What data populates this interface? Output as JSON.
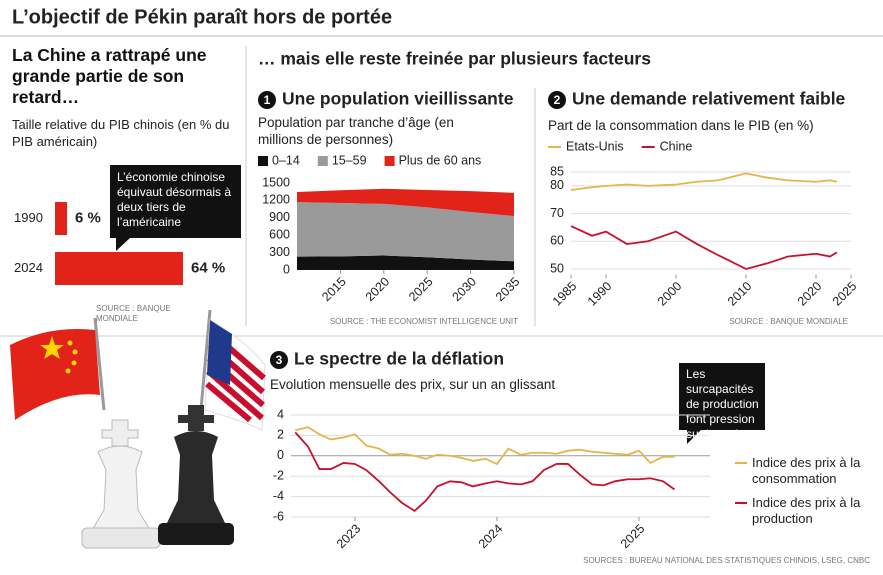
{
  "title": "L’objectif de Pékin paraît hors de portée",
  "section_heading": "… mais elle reste freinée par plusieurs facteurs",
  "chart_data": [
    {
      "type": "bar",
      "orientation": "horizontal",
      "title": "La Chine a rattrapé une grande partie de son retard…",
      "subtitle": "Taille relative du PIB chinois (en % du PIB américain)",
      "categories": [
        "1990",
        "2024"
      ],
      "values": [
        6,
        64
      ],
      "value_labels": [
        "6 %",
        "64 %"
      ],
      "color": "#e2231a",
      "annotation": "L’économie chinoise équivaut désormais à deux tiers de l’américaine",
      "source": "SOURCE : BANQUE MONDIALE"
    },
    {
      "type": "area",
      "stacked": true,
      "number": 1,
      "title": "Une population vieillissante",
      "subtitle": "Population par tranche d’âge (en millions de personnes)",
      "x": [
        2010,
        2015,
        2020,
        2025,
        2030,
        2035
      ],
      "xlim": [
        2010,
        2035
      ],
      "xticks": [
        2015,
        2020,
        2025,
        2030,
        2035
      ],
      "ylim": [
        0,
        1500
      ],
      "yticks": [
        0,
        300,
        600,
        900,
        1200,
        1500
      ],
      "grid": false,
      "legend": "top",
      "series": [
        {
          "name": "0–14",
          "color": "#111111",
          "values": [
            230,
            235,
            250,
            220,
            180,
            150
          ]
        },
        {
          "name": "15–59",
          "color": "#9a9a9a",
          "values": [
            940,
            920,
            890,
            860,
            820,
            780
          ]
        },
        {
          "name": "Plus de 60 ans",
          "color": "#e2231a",
          "values": [
            175,
            220,
            260,
            300,
            360,
            400
          ]
        }
      ],
      "source": "SOURCE : THE ECONOMIST INTELLIGENCE UNIT"
    },
    {
      "type": "line",
      "number": 2,
      "title": "Une demande relativement faible",
      "subtitle": "Part de la consommation dans le PIB (en %)",
      "x": [
        1985,
        1988,
        1990,
        1993,
        1996,
        2000,
        2003,
        2006,
        2010,
        2013,
        2016,
        2020,
        2022,
        2023
      ],
      "xlim": [
        1985,
        2025
      ],
      "xticks": [
        1985,
        1990,
        2000,
        2010,
        2020,
        2025
      ],
      "ylim": [
        48,
        87
      ],
      "yticks": [
        50,
        60,
        70,
        80,
        85
      ],
      "grid": true,
      "legend": "top",
      "series": [
        {
          "name": "Etats-Unis",
          "color": "#e3b54a",
          "values": [
            78.5,
            79.5,
            80,
            80.5,
            80,
            80.5,
            81.5,
            82,
            84.5,
            83,
            82,
            81.5,
            82,
            81.5
          ]
        },
        {
          "name": "Chine",
          "color": "#c8102e",
          "values": [
            65.5,
            62,
            63.5,
            59,
            60,
            63.5,
            59,
            55,
            50,
            52,
            54.5,
            55.5,
            54.5,
            56
          ]
        }
      ],
      "source": "SOURCE : BANQUE MONDIALE"
    },
    {
      "type": "line",
      "number": 3,
      "title": "Le spectre de la déflation",
      "subtitle": "Evolution mensuelle des prix, sur un an glissant",
      "x": [
        2022.58,
        2022.67,
        2022.75,
        2022.83,
        2022.92,
        2023.0,
        2023.08,
        2023.17,
        2023.25,
        2023.33,
        2023.42,
        2023.5,
        2023.58,
        2023.67,
        2023.75,
        2023.83,
        2023.92,
        2024.0,
        2024.08,
        2024.17,
        2024.25,
        2024.33,
        2024.42,
        2024.5,
        2024.58,
        2024.67,
        2024.75,
        2024.83,
        2024.92,
        2025.0,
        2025.08,
        2025.17,
        2025.25
      ],
      "xlim": [
        2022.55,
        2025.5
      ],
      "xticks": [
        2023,
        2024,
        2025
      ],
      "ylim": [
        -6,
        4
      ],
      "yticks": [
        -6,
        -4,
        -2,
        0,
        2,
        4
      ],
      "grid": true,
      "legend": "right",
      "series": [
        {
          "name": "Indice des prix à la consommation",
          "color": "#e3b54a",
          "values": [
            2.5,
            2.8,
            2.1,
            1.6,
            1.8,
            2.1,
            1.0,
            0.7,
            0.1,
            0.2,
            0.0,
            -0.3,
            0.1,
            0.0,
            -0.2,
            -0.5,
            -0.3,
            -0.8,
            0.7,
            0.1,
            0.3,
            0.3,
            0.2,
            0.5,
            0.6,
            0.4,
            0.3,
            0.2,
            0.1,
            0.5,
            -0.7,
            -0.1,
            -0.1
          ]
        },
        {
          "name": "Indice des prix à la production",
          "color": "#c8102e",
          "values": [
            2.3,
            0.9,
            -1.3,
            -1.3,
            -0.7,
            -0.8,
            -1.4,
            -2.5,
            -3.6,
            -4.6,
            -5.4,
            -4.4,
            -3.0,
            -2.5,
            -2.6,
            -3.0,
            -2.7,
            -2.5,
            -2.7,
            -2.8,
            -2.5,
            -1.4,
            -0.8,
            -0.8,
            -1.8,
            -2.8,
            -2.9,
            -2.5,
            -2.3,
            -2.3,
            -2.2,
            -2.5,
            -3.3
          ]
        }
      ],
      "annotation": "Les surcapacités de production font pression sur les prix",
      "source": "SOURCES : BUREAU NATIONAL DES STATISTIQUES CHINOIS, LSEG, CNBC"
    }
  ]
}
